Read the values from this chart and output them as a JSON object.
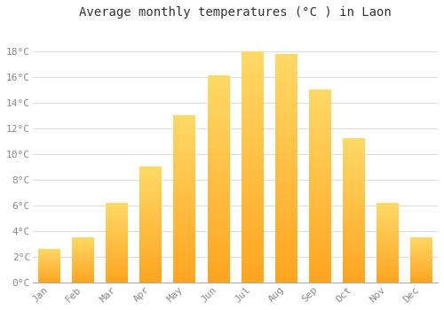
{
  "title": "Average monthly temperatures (°C ) in Laon",
  "months": [
    "Jan",
    "Feb",
    "Mar",
    "Apr",
    "May",
    "Jun",
    "Jul",
    "Aug",
    "Sep",
    "Oct",
    "Nov",
    "Dec"
  ],
  "values": [
    2.6,
    3.5,
    6.2,
    9.0,
    13.0,
    16.1,
    18.0,
    17.8,
    15.0,
    11.2,
    6.2,
    3.5
  ],
  "bar_color": "#FFA500",
  "bar_color_light": "#FFD966",
  "background_color": "#FFFFFF",
  "plot_bg_color": "#FFFFFF",
  "grid_color": "#DDDDDD",
  "ylim": [
    0,
    20
  ],
  "yticks": [
    0,
    2,
    4,
    6,
    8,
    10,
    12,
    14,
    16,
    18
  ],
  "title_fontsize": 10,
  "tick_fontsize": 8,
  "tick_color": "#888888"
}
